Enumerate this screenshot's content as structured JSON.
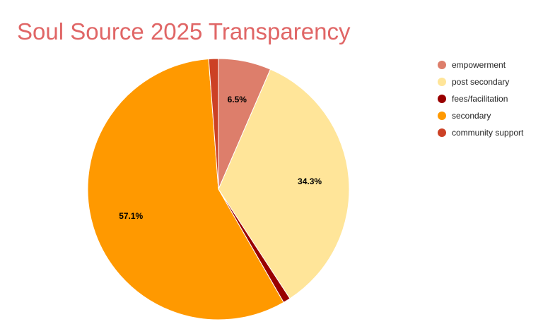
{
  "chart_data": {
    "type": "pie",
    "title": "Soul Source 2025 Transparency",
    "title_color": "#e06666",
    "legend_position": "right",
    "slices": [
      {
        "name": "empowerment",
        "value": 6.5,
        "label": "6.5%",
        "color": "#dd7e6b"
      },
      {
        "name": "post secondary",
        "value": 34.3,
        "label": "34.3%",
        "color": "#ffe599"
      },
      {
        "name": "fees/facilitation",
        "value": 0.9,
        "label": "",
        "color": "#990000"
      },
      {
        "name": "secondary",
        "value": 57.1,
        "label": "57.1%",
        "color": "#ff9900"
      },
      {
        "name": "community support",
        "value": 1.2,
        "label": "",
        "color": "#cc4125"
      }
    ]
  }
}
